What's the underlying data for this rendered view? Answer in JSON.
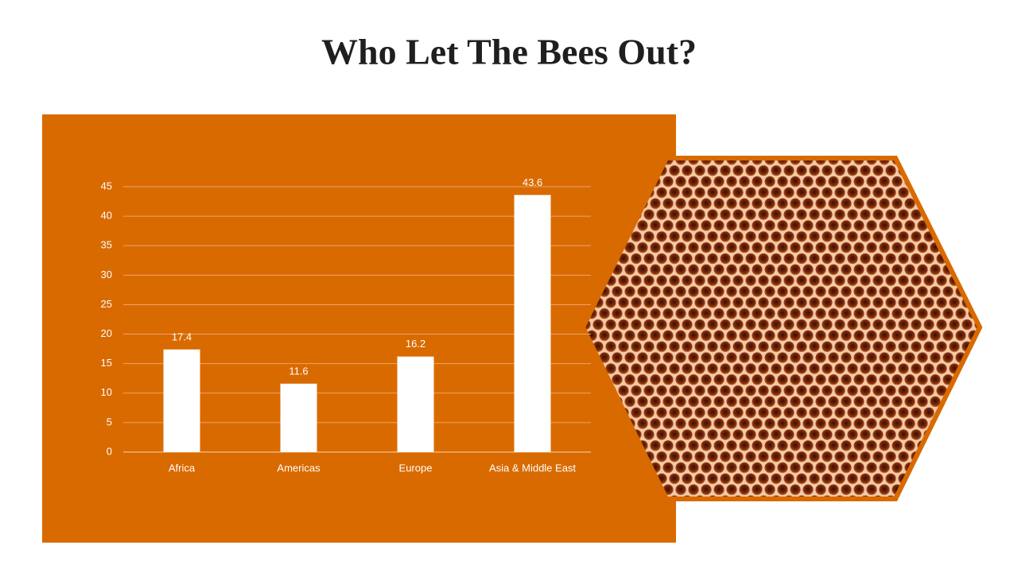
{
  "chart_data": {
    "type": "bar",
    "title": "Who Let The Bees Out?",
    "categories": [
      "Africa",
      "Americas",
      "Europe",
      "Asia & Middle East"
    ],
    "values": [
      17.4,
      11.6,
      16.2,
      43.6
    ],
    "color": "#ffffff",
    "ylim": [
      0,
      45
    ],
    "yticks": [
      0,
      5,
      10,
      15,
      20,
      25,
      30,
      35,
      40,
      45
    ],
    "grid": true
  }
}
